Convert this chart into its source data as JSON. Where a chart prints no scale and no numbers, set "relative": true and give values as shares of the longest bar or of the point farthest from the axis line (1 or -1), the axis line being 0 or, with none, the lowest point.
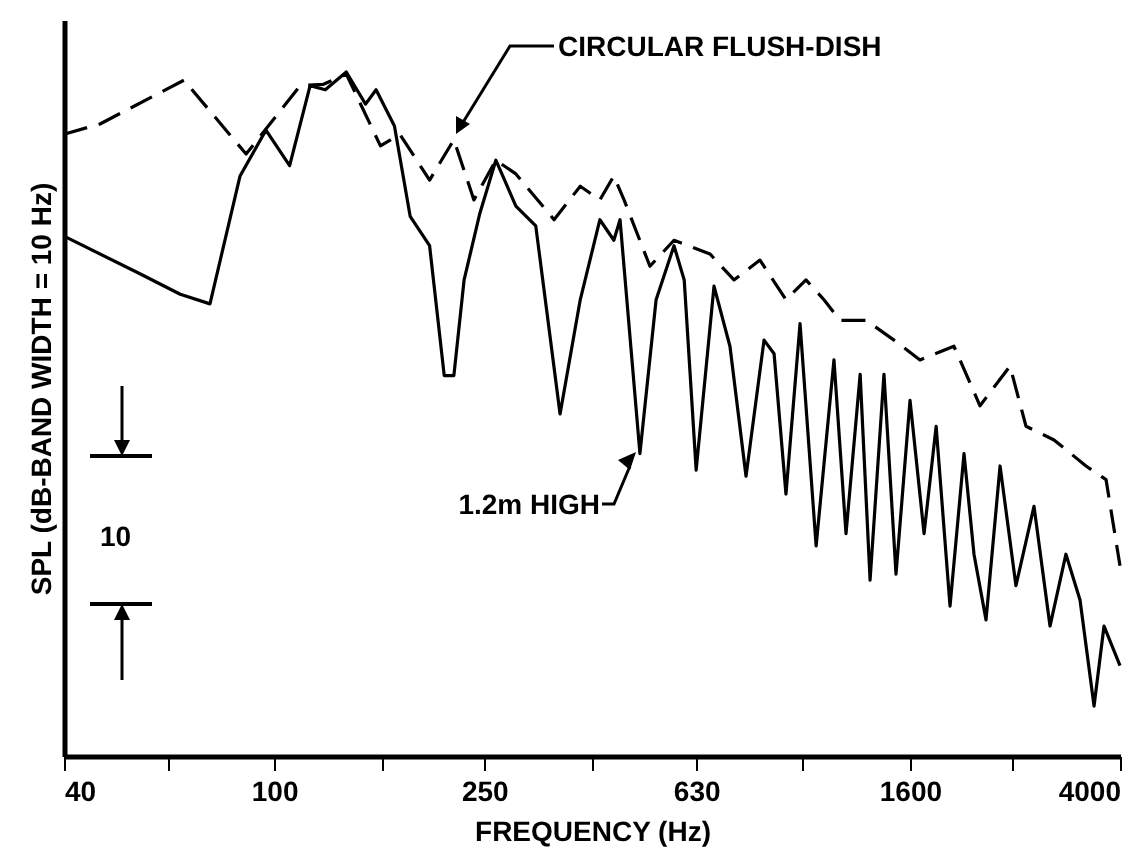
{
  "chart_data": {
    "type": "line",
    "xlabel": "FREQUENCY (Hz)",
    "ylabel": "SPL (dB-BAND WIDTH = 10 Hz)",
    "relative": true,
    "log": "x",
    "grid": false,
    "marker": "none",
    "xlim": [
      40,
      4000
    ],
    "xticks": [
      40,
      {
        "value": 63,
        "label": null
      },
      100,
      {
        "value": 160,
        "label": null
      },
      250,
      {
        "value": 400,
        "label": null
      },
      630,
      {
        "value": 1000,
        "label": null
      },
      1600,
      {
        "value": 2500,
        "label": null
      },
      4000
    ],
    "annotations": [
      "10"
    ],
    "series": [
      {
        "name": "CIRCULAR FLUSH-DISH",
        "color": "#000000",
        "line_style": "dashed",
        "x": [
          40,
          46.8,
          67.5,
          88.5,
          112,
          124,
          137,
          159,
          173,
          197,
          219,
          239,
          263,
          287,
          339,
          380,
          414,
          440,
          460,
          515,
          572,
          669,
          743,
          832,
          932,
          1017,
          1100,
          1180,
          1322,
          1493,
          1672,
          1939,
          2172,
          2476,
          2655,
          3000,
          3449,
          3764,
          4000
        ],
        "values": [
          0.909,
          0.924,
          0.988,
          0.88,
          0.98,
          0.982,
          0.997,
          0.892,
          0.909,
          0.842,
          0.901,
          0.813,
          0.871,
          0.851,
          0.784,
          0.833,
          0.813,
          0.848,
          0.813,
          0.716,
          0.754,
          0.734,
          0.696,
          0.725,
          0.667,
          0.696,
          0.667,
          0.637,
          0.637,
          0.608,
          0.579,
          0.599,
          0.512,
          0.57,
          0.482,
          0.462,
          0.424,
          0.404,
          0.278
        ]
      },
      {
        "name": "1.2m HIGH",
        "color": "#000000",
        "line_style": "solid",
        "x": [
          40,
          55.7,
          66.4,
          75.6,
          86.2,
          96.5,
          107,
          117,
          125,
          137,
          149,
          156,
          169,
          181,
          197,
          210,
          219,
          229,
          245,
          263,
          287,
          313,
          348,
          380,
          414,
          440,
          452,
          493,
          529,
          572,
          598,
          630,
          681,
          730,
          783,
          847,
          885,
          932,
          991,
          1063,
          1149,
          1211,
          1288,
          1345,
          1429,
          1506,
          1601,
          1702,
          1794,
          1906,
          2026,
          2116,
          2230,
          2371,
          2541,
          2749,
          2948,
          3160,
          3360,
          3572,
          3731,
          4000
        ],
        "values": [
          0.76,
          0.705,
          0.675,
          0.661,
          0.848,
          0.915,
          0.863,
          0.98,
          0.974,
          1,
          0.953,
          0.974,
          0.921,
          0.789,
          0.746,
          0.556,
          0.556,
          0.696,
          0.792,
          0.871,
          0.804,
          0.775,
          0.5,
          0.667,
          0.784,
          0.754,
          0.784,
          0.442,
          0.667,
          0.746,
          0.696,
          0.418,
          0.687,
          0.599,
          0.409,
          0.608,
          0.588,
          0.383,
          0.632,
          0.307,
          0.579,
          0.325,
          0.558,
          0.257,
          0.558,
          0.266,
          0.52,
          0.325,
          0.482,
          0.219,
          0.442,
          0.295,
          0.199,
          0.424,
          0.249,
          0.365,
          0.19,
          0.295,
          0.228,
          0.073,
          0.19,
          0.132
        ]
      }
    ]
  }
}
